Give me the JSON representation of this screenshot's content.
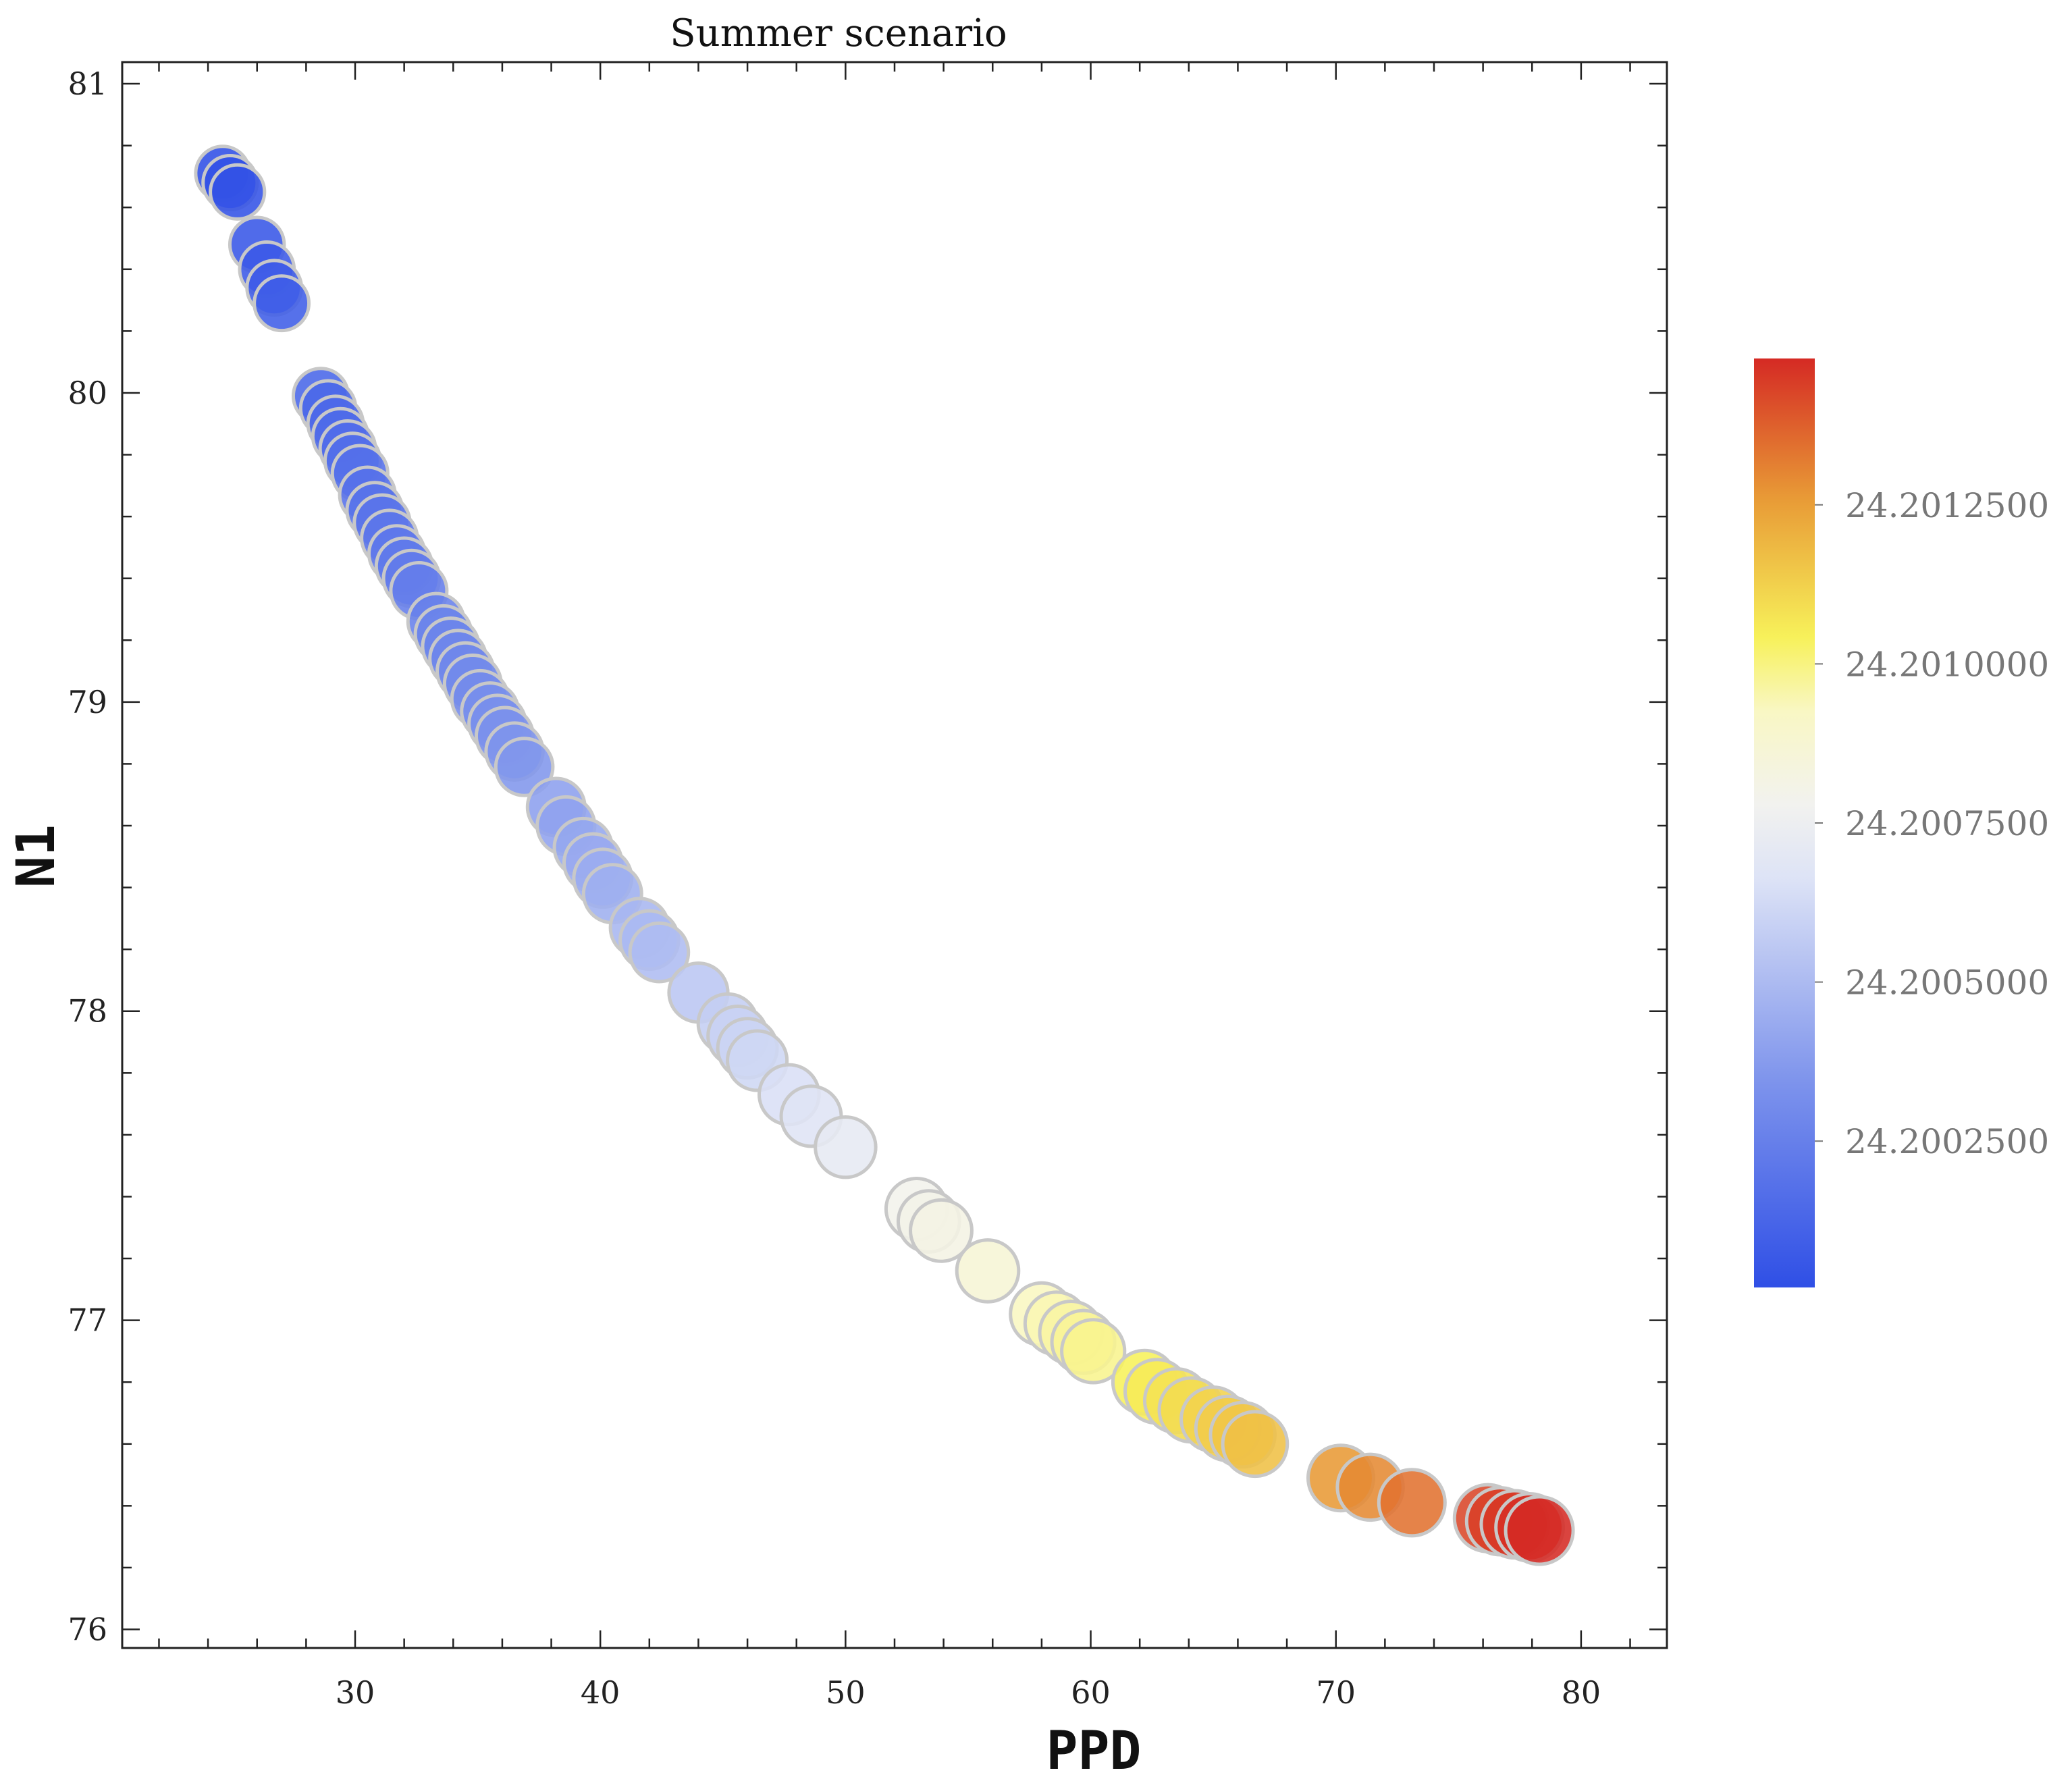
{
  "chart_data": {
    "type": "scatter",
    "title": "Summer scenario",
    "xlabel": "PPD",
    "ylabel": "N1",
    "xlim": [
      20.5,
      83.5
    ],
    "ylim": [
      75.94,
      81.07
    ],
    "xticks": [
      30,
      40,
      50,
      60,
      70,
      80
    ],
    "yticks": [
      76,
      77,
      78,
      79,
      80,
      81
    ],
    "grid": false,
    "colorbar": {
      "position": "right",
      "colormap": "coolwarm",
      "ticks": [
        24.20025,
        24.2005,
        24.20075,
        24.201,
        24.20125
      ],
      "tick_labels": [
        "24.2002500",
        "24.2005000",
        "24.2007500",
        "24.2010000",
        "24.2012500"
      ],
      "vmin": 24.20002,
      "vmax": 24.20148
    },
    "colors": {
      "low": "#2f4fe6",
      "mid": "#f0f0f0",
      "high_mid": "#f7f15a",
      "high": "#d52a24"
    },
    "points": [
      {
        "x": 24.6,
        "y": 80.71
      },
      {
        "x": 24.9,
        "y": 80.68
      },
      {
        "x": 25.2,
        "y": 80.65
      },
      {
        "x": 26.0,
        "y": 80.48
      },
      {
        "x": 26.4,
        "y": 80.4
      },
      {
        "x": 26.7,
        "y": 80.34
      },
      {
        "x": 27.0,
        "y": 80.29
      },
      {
        "x": 28.6,
        "y": 79.99
      },
      {
        "x": 28.9,
        "y": 79.95
      },
      {
        "x": 29.2,
        "y": 79.9
      },
      {
        "x": 29.4,
        "y": 79.86
      },
      {
        "x": 29.7,
        "y": 79.82
      },
      {
        "x": 29.9,
        "y": 79.78
      },
      {
        "x": 30.2,
        "y": 79.74
      },
      {
        "x": 30.5,
        "y": 79.67
      },
      {
        "x": 30.8,
        "y": 79.62
      },
      {
        "x": 31.1,
        "y": 79.58
      },
      {
        "x": 31.4,
        "y": 79.53
      },
      {
        "x": 31.7,
        "y": 79.48
      },
      {
        "x": 32.0,
        "y": 79.44
      },
      {
        "x": 32.3,
        "y": 79.4
      },
      {
        "x": 32.6,
        "y": 79.36
      },
      {
        "x": 33.3,
        "y": 79.26
      },
      {
        "x": 33.6,
        "y": 79.22
      },
      {
        "x": 33.9,
        "y": 79.18
      },
      {
        "x": 34.2,
        "y": 79.14
      },
      {
        "x": 34.5,
        "y": 79.1
      },
      {
        "x": 34.8,
        "y": 79.06
      },
      {
        "x": 35.1,
        "y": 79.01
      },
      {
        "x": 35.5,
        "y": 78.97
      },
      {
        "x": 35.8,
        "y": 78.93
      },
      {
        "x": 36.1,
        "y": 78.89
      },
      {
        "x": 36.5,
        "y": 78.84
      },
      {
        "x": 36.9,
        "y": 78.79
      },
      {
        "x": 38.2,
        "y": 78.66
      },
      {
        "x": 38.6,
        "y": 78.6
      },
      {
        "x": 39.3,
        "y": 78.53
      },
      {
        "x": 39.7,
        "y": 78.48
      },
      {
        "x": 40.1,
        "y": 78.43
      },
      {
        "x": 40.5,
        "y": 78.38
      },
      {
        "x": 41.6,
        "y": 78.27
      },
      {
        "x": 42.0,
        "y": 78.23
      },
      {
        "x": 42.4,
        "y": 78.19
      },
      {
        "x": 44.0,
        "y": 78.06
      },
      {
        "x": 45.2,
        "y": 77.96
      },
      {
        "x": 45.6,
        "y": 77.92
      },
      {
        "x": 46.0,
        "y": 77.88
      },
      {
        "x": 46.4,
        "y": 77.84
      },
      {
        "x": 47.7,
        "y": 77.73
      },
      {
        "x": 48.6,
        "y": 77.66
      },
      {
        "x": 50.0,
        "y": 77.56
      },
      {
        "x": 52.9,
        "y": 77.36
      },
      {
        "x": 53.4,
        "y": 77.32
      },
      {
        "x": 53.9,
        "y": 77.29
      },
      {
        "x": 55.8,
        "y": 77.16
      },
      {
        "x": 58.0,
        "y": 77.02
      },
      {
        "x": 58.6,
        "y": 76.99
      },
      {
        "x": 59.2,
        "y": 76.96
      },
      {
        "x": 59.7,
        "y": 76.93
      },
      {
        "x": 60.1,
        "y": 76.9
      },
      {
        "x": 62.2,
        "y": 76.8
      },
      {
        "x": 62.7,
        "y": 76.77
      },
      {
        "x": 63.5,
        "y": 76.74
      },
      {
        "x": 64.1,
        "y": 76.71
      },
      {
        "x": 65.0,
        "y": 76.68
      },
      {
        "x": 65.6,
        "y": 76.65
      },
      {
        "x": 66.2,
        "y": 76.63
      },
      {
        "x": 66.7,
        "y": 76.6
      },
      {
        "x": 70.2,
        "y": 76.49
      },
      {
        "x": 71.4,
        "y": 76.46
      },
      {
        "x": 73.1,
        "y": 76.41
      },
      {
        "x": 76.2,
        "y": 76.36
      },
      {
        "x": 76.7,
        "y": 76.35
      },
      {
        "x": 77.3,
        "y": 76.34
      },
      {
        "x": 77.9,
        "y": 76.33
      },
      {
        "x": 78.3,
        "y": 76.32
      }
    ]
  }
}
